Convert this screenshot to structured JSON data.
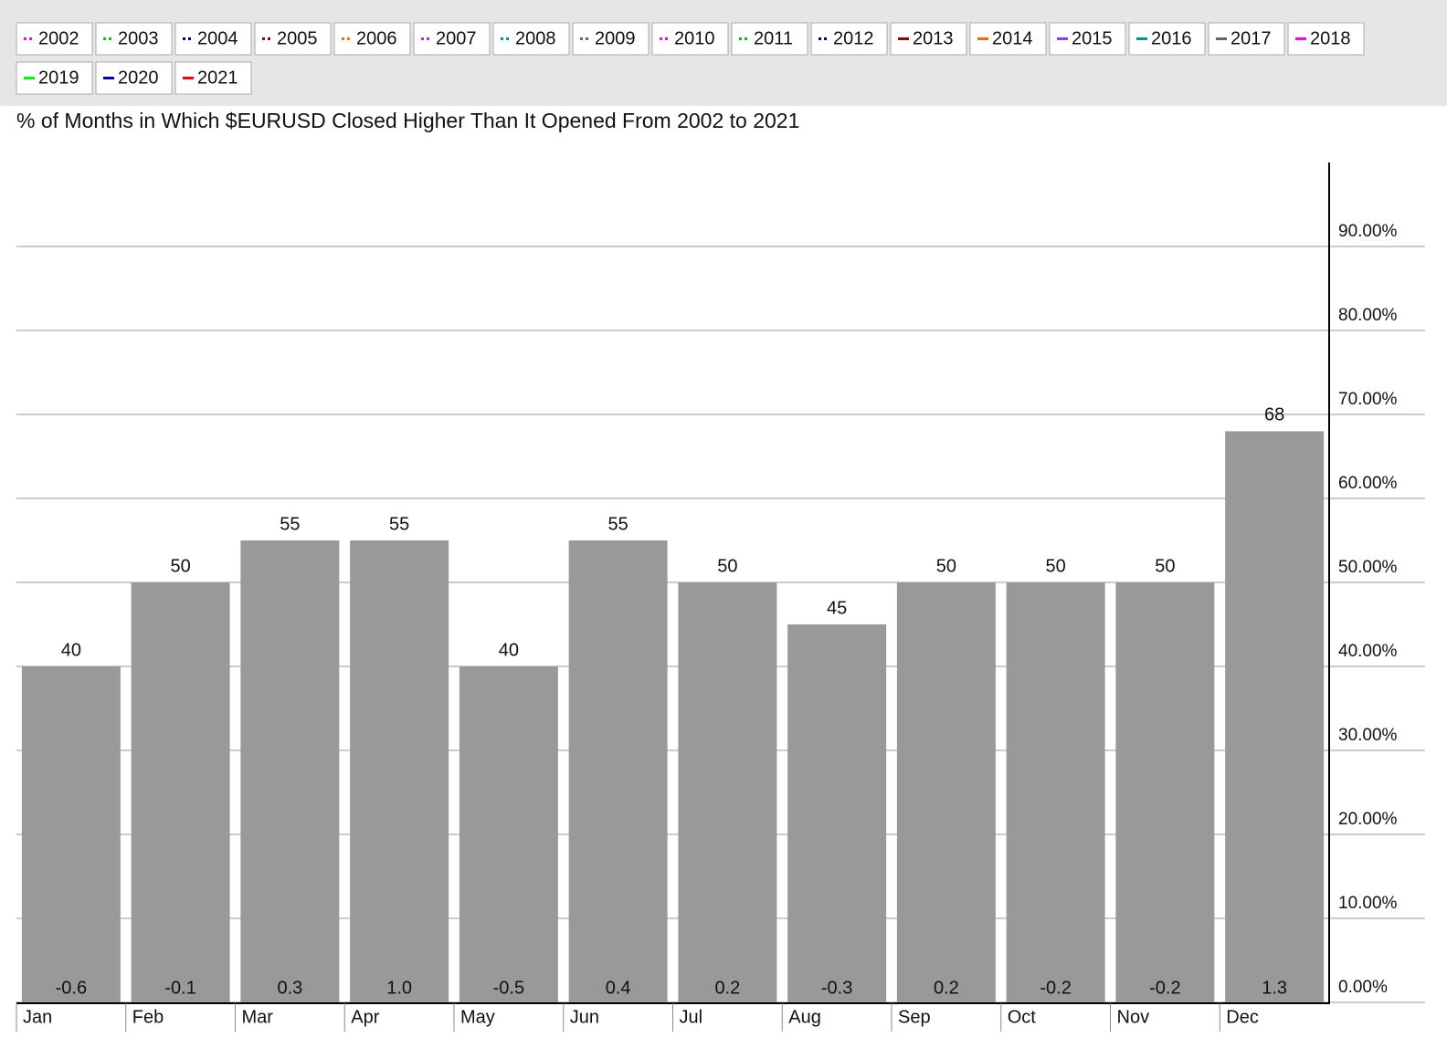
{
  "chart_data": {
    "type": "bar",
    "title": "% of Months in Which $EURUSD Closed Higher Than It Opened From 2002 to 2021",
    "legend": [
      {
        "name": "2002",
        "color": "#ff00ff",
        "style": "dotted"
      },
      {
        "name": "2003",
        "color": "#00cc00",
        "style": "dotted"
      },
      {
        "name": "2004",
        "color": "#000099",
        "style": "dotted"
      },
      {
        "name": "2005",
        "color": "#990000",
        "style": "dotted"
      },
      {
        "name": "2006",
        "color": "#ff6600",
        "style": "dotted"
      },
      {
        "name": "2007",
        "color": "#9933ff",
        "style": "dotted"
      },
      {
        "name": "2008",
        "color": "#009999",
        "style": "dotted"
      },
      {
        "name": "2009",
        "color": "#666666",
        "style": "dotted"
      },
      {
        "name": "2010",
        "color": "#ff00ff",
        "style": "dotted"
      },
      {
        "name": "2011",
        "color": "#00cc00",
        "style": "dotted"
      },
      {
        "name": "2012",
        "color": "#000099",
        "style": "dotted"
      },
      {
        "name": "2013",
        "color": "#990000",
        "style": "solid"
      },
      {
        "name": "2014",
        "color": "#ff6600",
        "style": "solid"
      },
      {
        "name": "2015",
        "color": "#9933ff",
        "style": "solid"
      },
      {
        "name": "2016",
        "color": "#009999",
        "style": "solid"
      },
      {
        "name": "2017",
        "color": "#666666",
        "style": "solid"
      },
      {
        "name": "2018",
        "color": "#ff00ff",
        "style": "solid"
      },
      {
        "name": "2019",
        "color": "#00ff00",
        "style": "solid"
      },
      {
        "name": "2020",
        "color": "#0000cc",
        "style": "solid"
      },
      {
        "name": "2021",
        "color": "#ff0000",
        "style": "solid"
      }
    ],
    "categories": [
      "Jan",
      "Feb",
      "Mar",
      "Apr",
      "May",
      "Jun",
      "Jul",
      "Aug",
      "Sep",
      "Oct",
      "Nov",
      "Dec"
    ],
    "series": [
      {
        "color": "#999999",
        "values": [
          40,
          50,
          55,
          55,
          40,
          55,
          50,
          45,
          50,
          50,
          50,
          68
        ]
      },
      {
        "values": [
          -0.6,
          -0.1,
          0.3,
          1.0,
          -0.5,
          0.4,
          0.2,
          -0.3,
          0.2,
          -0.2,
          -0.2,
          1.3
        ],
        "value_labels": [
          "-0.6",
          "-0.1",
          "0.3",
          "1.0",
          "-0.5",
          "0.4",
          "0.2",
          "-0.3",
          "0.2",
          "-0.2",
          "-0.2",
          "1.3"
        ]
      }
    ],
    "ylim": [
      0,
      100
    ],
    "yticks": [
      {
        "value": 0,
        "label": "0.00%"
      },
      {
        "value": 10,
        "label": "10.00%"
      },
      {
        "value": 20,
        "label": "20.00%"
      },
      {
        "value": 30,
        "label": "30.00%"
      },
      {
        "value": 40,
        "label": "40.00%"
      },
      {
        "value": 50,
        "label": "50.00%"
      },
      {
        "value": 60,
        "label": "60.00%"
      },
      {
        "value": 70,
        "label": "70.00%"
      },
      {
        "value": 80,
        "label": "80.00%"
      },
      {
        "value": 90,
        "label": "90.00%"
      }
    ],
    "grid": true
  }
}
